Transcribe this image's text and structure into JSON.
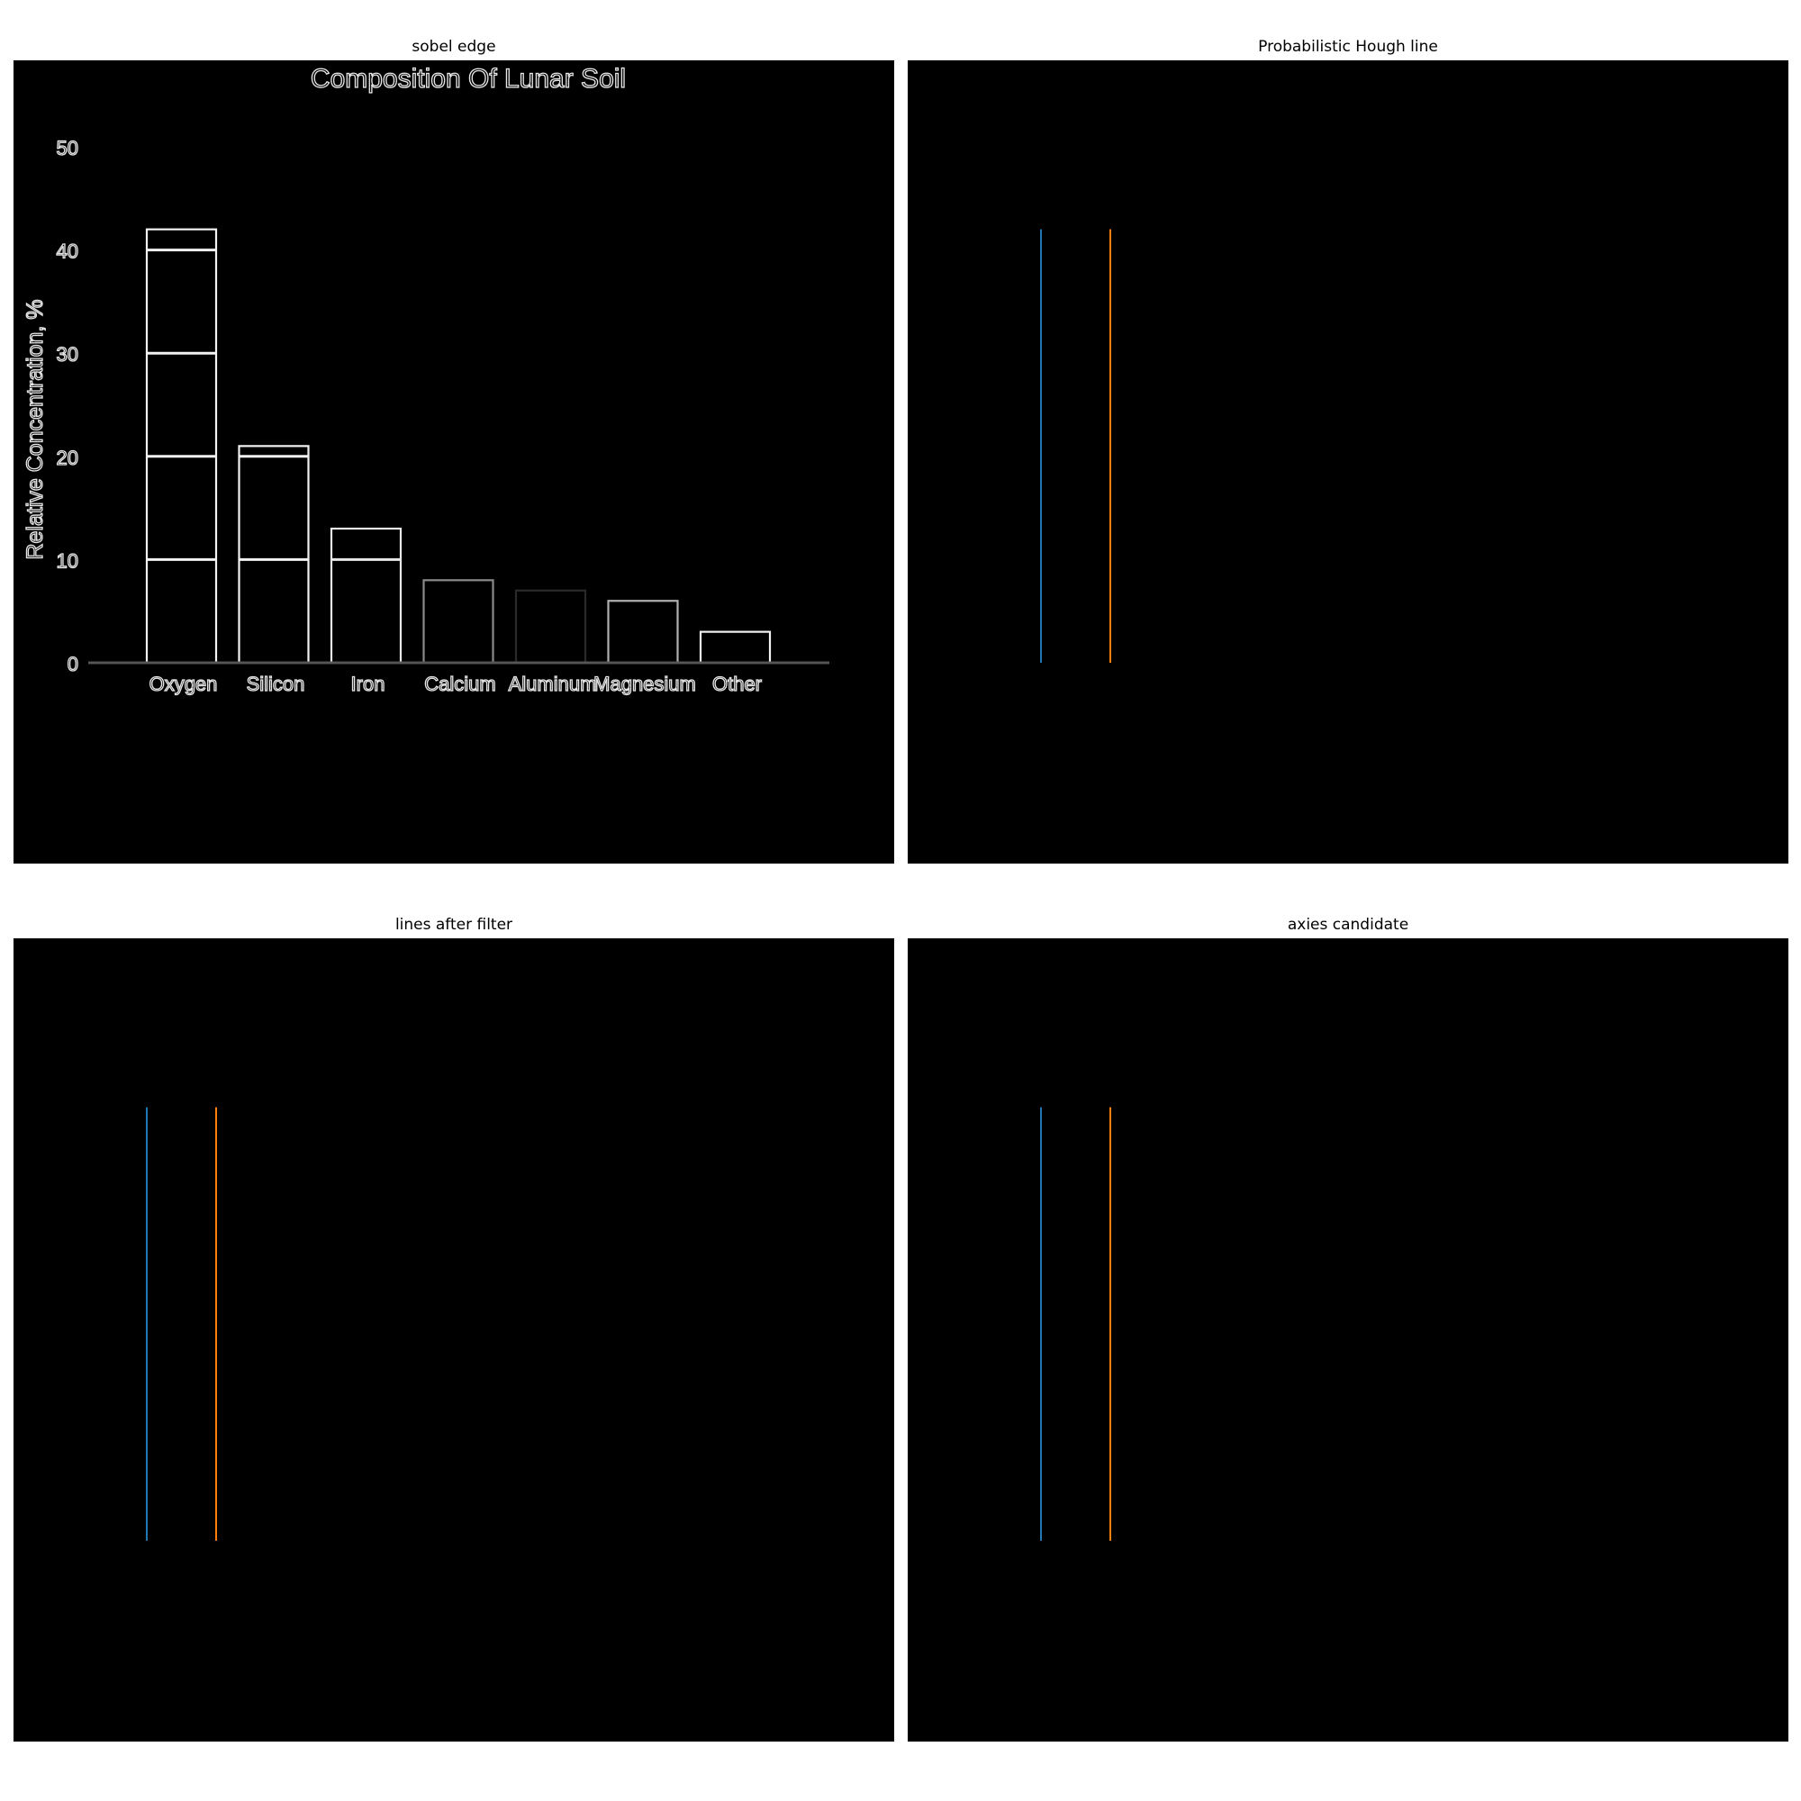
{
  "panels": [
    {
      "title": "sobel edge"
    },
    {
      "title": "Probabilistic Hough line"
    },
    {
      "title": "lines after filter"
    },
    {
      "title": "axies candidate"
    }
  ],
  "chart_data": {
    "type": "bar",
    "title": "Composition Of Lunar Soil",
    "xlabel": "",
    "ylabel": "Relative Concentration, %",
    "categories": [
      "Oxygen",
      "Silicon",
      "Iron",
      "Calcium",
      "Aluminum",
      "Magnesium",
      "Other"
    ],
    "values": [
      42,
      21,
      13,
      8,
      7,
      6,
      3
    ],
    "yticks": [
      "0",
      "10",
      "20",
      "30",
      "40",
      "50"
    ],
    "ylim": [
      0,
      50
    ],
    "grid": true,
    "edge_colors": [
      "#f2f2f2",
      "#f2f2f2",
      "#e8e8e8",
      "#8a8a8a",
      "#2a2a2a",
      "#b0b0b0",
      "#f2f2f2"
    ],
    "line_colors": [
      "#1f77b4",
      "#ff7f0e"
    ],
    "detected_lines": [
      {
        "x_category": "Oxygen",
        "edge": "left",
        "y_range": [
          0,
          42
        ]
      },
      {
        "x_category": "Oxygen",
        "edge": "right",
        "y_range": [
          0,
          42
        ]
      }
    ]
  }
}
